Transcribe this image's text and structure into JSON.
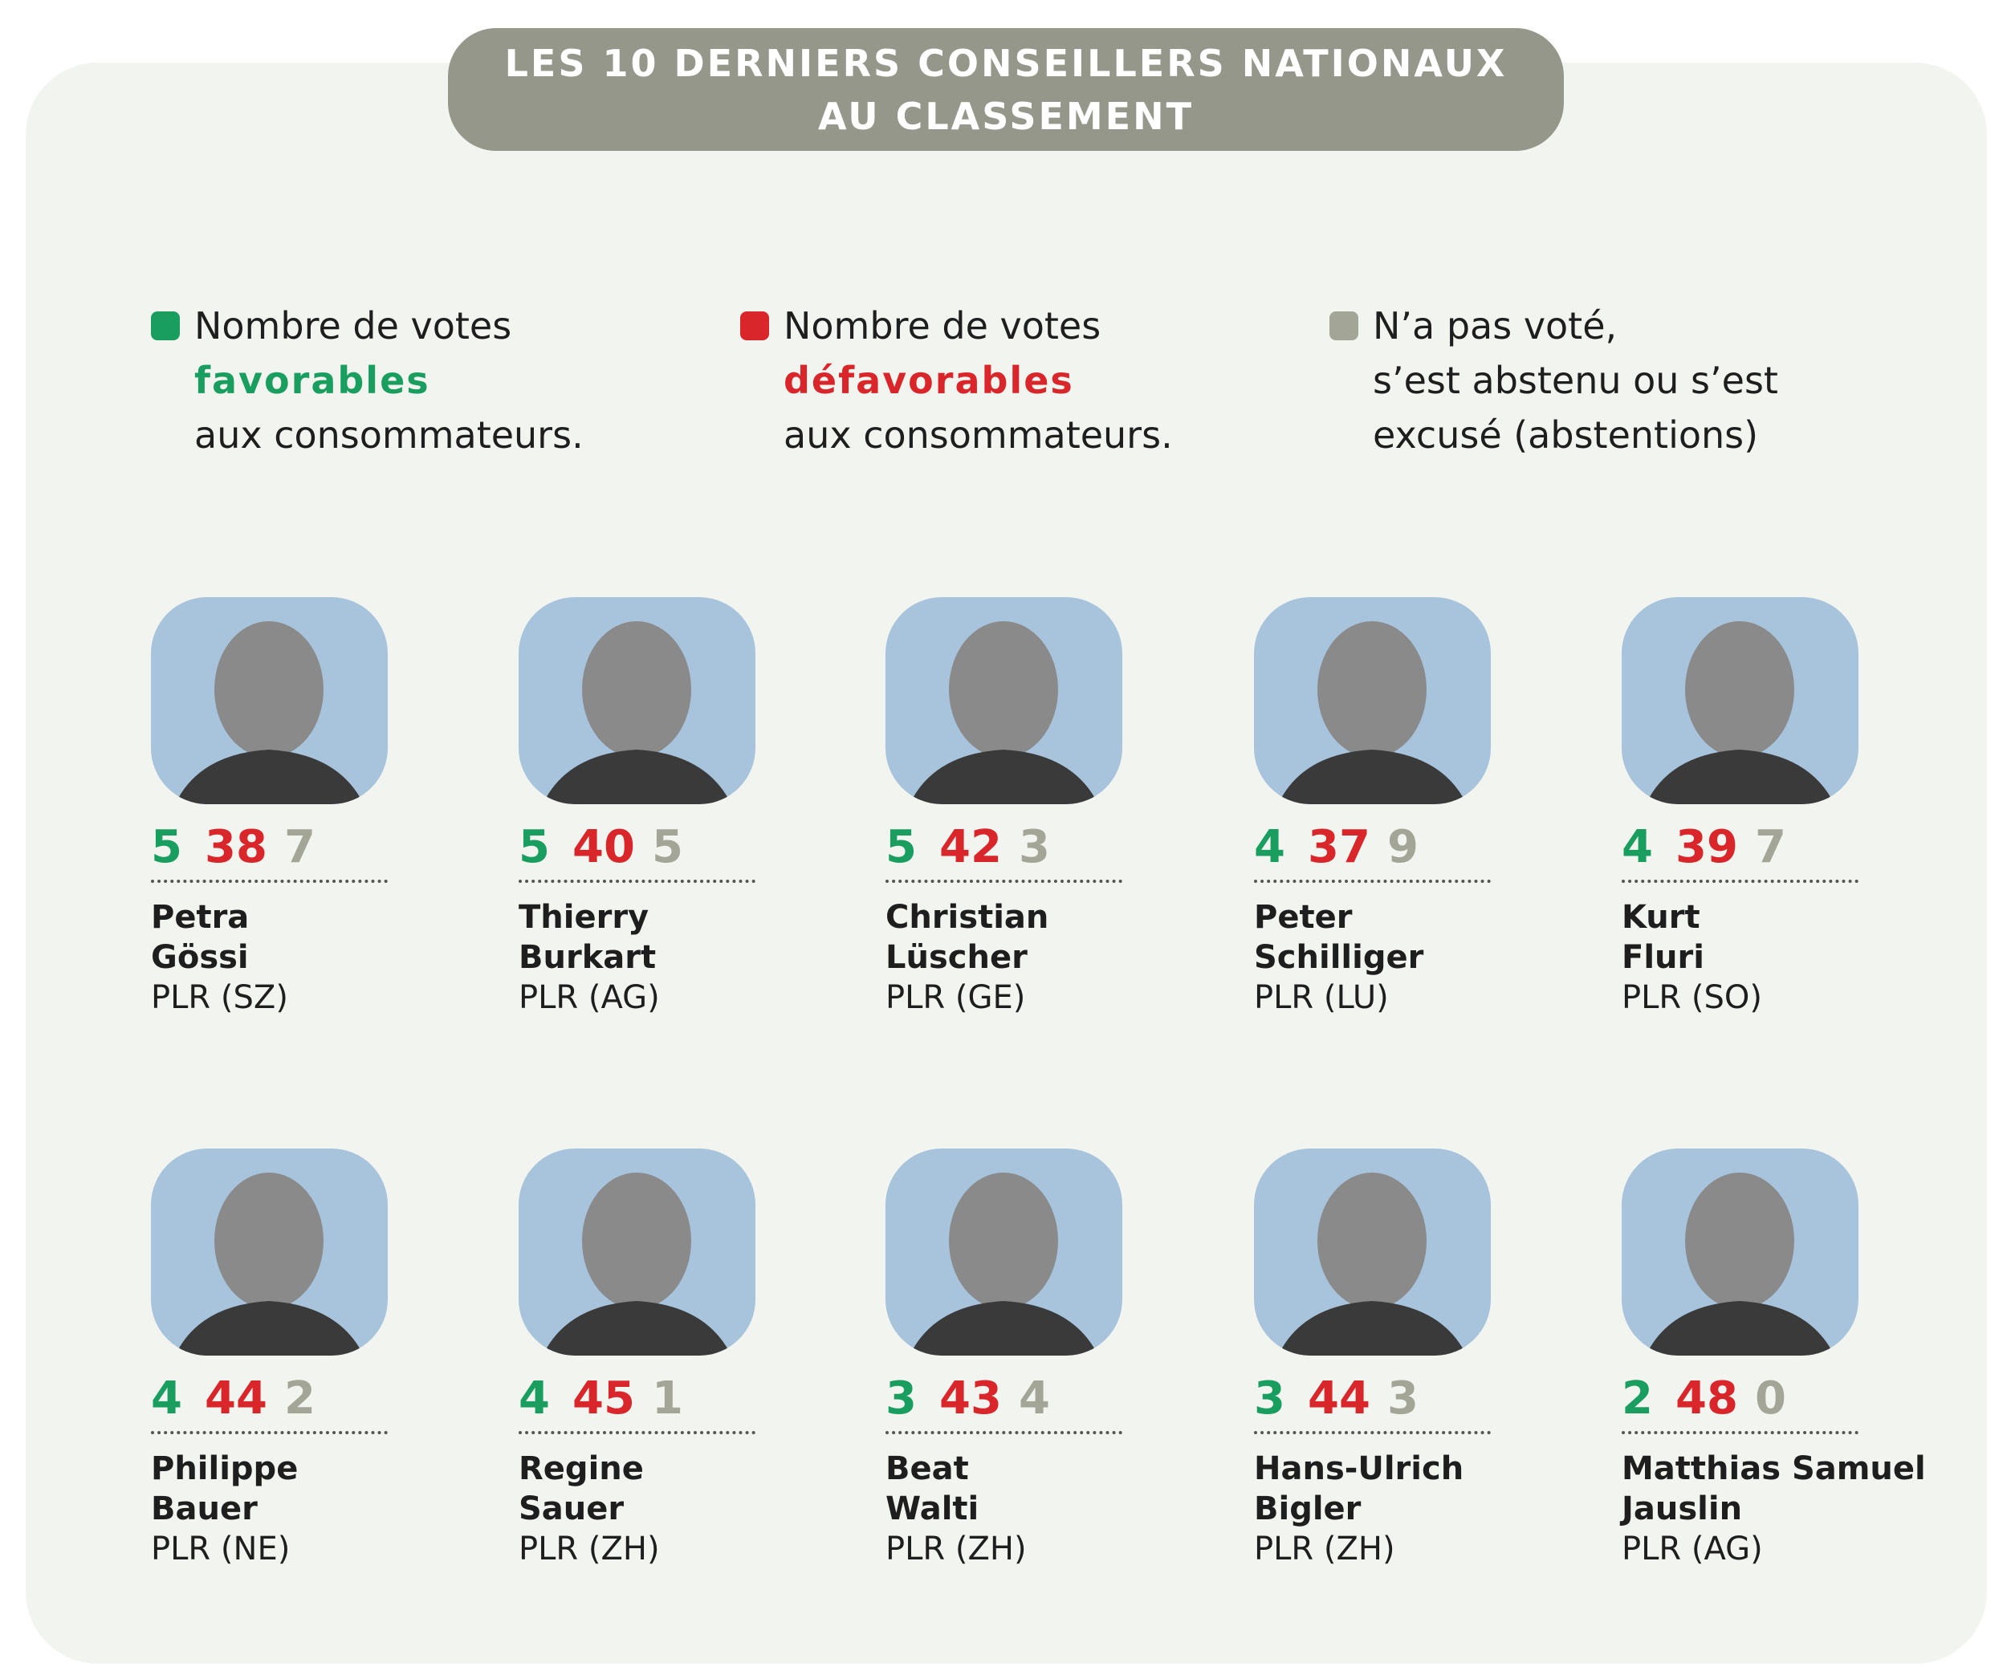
{
  "header": {
    "title": [
      "LES 10 DERNIERS CONSEILLERS NATIONAUX",
      "AU CLASSEMENT"
    ]
  },
  "legend": [
    {
      "color": "#1a9e5f",
      "lines": [
        "Nombre de votes",
        "favorables",
        "aux consommateurs."
      ]
    },
    {
      "color": "#d9262a",
      "lines": [
        "Nombre de votes",
        "défavorables",
        "aux consommateurs."
      ]
    },
    {
      "color": "#a3a596",
      "lines": [
        "N’a pas voté,",
        "s’est abstenu ou s’est",
        "excusé (abstentions)"
      ]
    }
  ],
  "people": [
    {
      "first": "Petra",
      "last": "Gössi",
      "party": "PLR (SZ)",
      "favorable": 5,
      "unfavorable": 38,
      "abstentions": 7
    },
    {
      "first": "Thierry",
      "last": "Burkart",
      "party": "PLR (AG)",
      "favorable": 5,
      "unfavorable": 40,
      "abstentions": 5
    },
    {
      "first": "Christian",
      "last": "Lüscher",
      "party": "PLR (GE)",
      "favorable": 5,
      "unfavorable": 42,
      "abstentions": 3
    },
    {
      "first": "Peter",
      "last": "Schilliger",
      "party": "PLR (LU)",
      "favorable": 4,
      "unfavorable": 37,
      "abstentions": 9
    },
    {
      "first": "Kurt",
      "last": "Fluri",
      "party": "PLR (SO)",
      "favorable": 4,
      "unfavorable": 39,
      "abstentions": 7
    },
    {
      "first": "Philippe",
      "last": "Bauer",
      "party": "PLR (NE)",
      "favorable": 4,
      "unfavorable": 44,
      "abstentions": 2
    },
    {
      "first": "Regine",
      "last": "Sauer",
      "party": "PLR (ZH)",
      "favorable": 4,
      "unfavorable": 45,
      "abstentions": 1
    },
    {
      "first": "Beat",
      "last": "Walti",
      "party": "PLR (ZH)",
      "favorable": 3,
      "unfavorable": 43,
      "abstentions": 4
    },
    {
      "first": "Hans-Ulrich",
      "last": "Bigler",
      "party": "PLR (ZH)",
      "favorable": 3,
      "unfavorable": 44,
      "abstentions": 3
    },
    {
      "first": "Matthias Samuel",
      "last": "Jauslin",
      "party": "PLR (AG)",
      "favorable": 2,
      "unfavorable": 48,
      "abstentions": 0
    }
  ]
}
